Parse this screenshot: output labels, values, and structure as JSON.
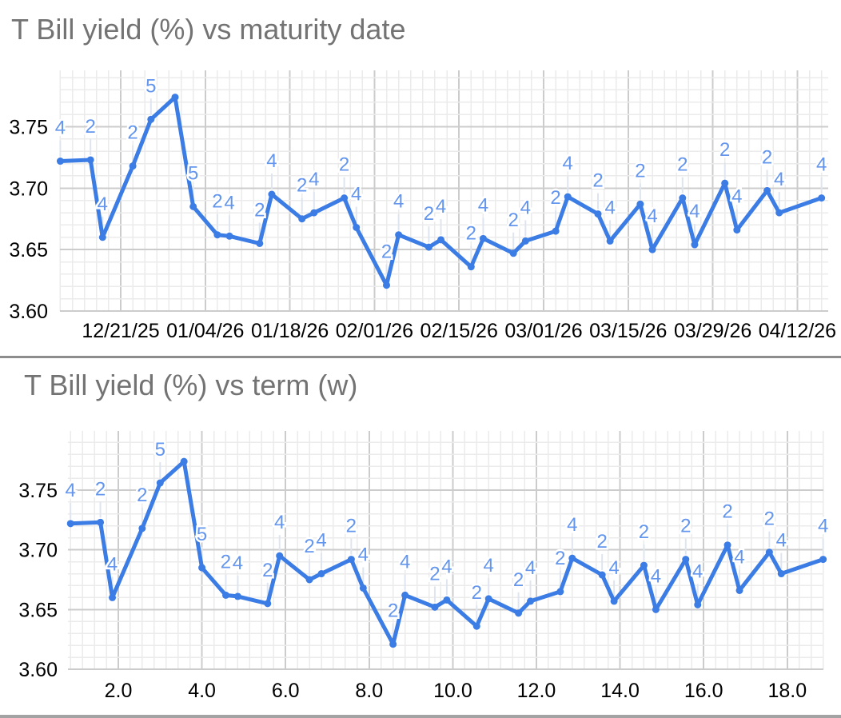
{
  "charts": [
    {
      "title": "T Bill yield (%) vs maturity date"
    },
    {
      "title": "T Bill yield (%) vs term (w)"
    }
  ],
  "colors": {
    "line": "#3c7ce5",
    "marker": "#3c7ce5",
    "point_label": "#6496ee",
    "label_leader": "#dfe5ef",
    "grid_major": "#cccccc",
    "grid_minor": "#ebebeb",
    "axis_label": "#000000",
    "title": "#737373",
    "container_border": "#8d8d8d",
    "bottom_bar": "#a3a3a3"
  },
  "chart_data": [
    {
      "type": "line",
      "title": "T Bill yield (%) vs maturity date",
      "xlabel": "maturity date",
      "ylabel": "T Bill yield (%)",
      "legend": "none",
      "grid": true,
      "ylim": [
        3.6,
        3.797
      ],
      "y_tick_values": [
        3.6,
        3.65,
        3.7,
        3.75
      ],
      "y_tick_labels": [
        "3.60",
        "3.65",
        "3.70",
        "3.75"
      ],
      "x_tick_labels": [
        "12/21/25",
        "01/04/26",
        "01/18/26",
        "02/01/26",
        "02/15/26",
        "03/01/26",
        "03/15/26",
        "03/29/26",
        "04/12/26"
      ],
      "x_weeks": [
        0.857,
        1.571,
        1.857,
        2.571,
        3.0,
        3.571,
        4.0,
        4.571,
        4.857,
        5.571,
        5.857,
        6.571,
        6.857,
        7.571,
        7.857,
        8.571,
        8.857,
        9.571,
        9.857,
        10.571,
        10.857,
        11.571,
        11.857,
        12.571,
        12.857,
        13.571,
        13.857,
        14.571,
        14.857,
        15.571,
        15.857,
        16.571,
        16.857,
        17.571,
        17.857,
        18.857
      ],
      "x_dates_est": [
        "12/11/25",
        "12/16/25",
        "12/18/25",
        "12/23/25",
        "12/26/25",
        "12/30/25",
        "01/02/26",
        "01/06/26",
        "01/08/26",
        "01/13/26",
        "01/15/26",
        "01/20/26",
        "01/22/26",
        "01/27/26",
        "01/29/26",
        "02/03/26",
        "02/05/26",
        "02/10/26",
        "02/12/26",
        "02/17/26",
        "02/19/26",
        "02/24/26",
        "02/26/26",
        "03/03/26",
        "03/05/26",
        "03/10/26",
        "03/12/26",
        "03/17/26",
        "03/19/26",
        "03/24/26",
        "03/26/26",
        "03/31/26",
        "04/02/26",
        "04/07/26",
        "04/09/26",
        "04/16/26"
      ],
      "yields": [
        3.722,
        3.723,
        3.66,
        3.718,
        3.756,
        3.774,
        3.685,
        3.662,
        3.661,
        3.655,
        3.695,
        3.675,
        3.68,
        3.692,
        3.668,
        3.621,
        3.662,
        3.652,
        3.658,
        3.636,
        3.659,
        3.647,
        3.657,
        3.665,
        3.693,
        3.679,
        3.657,
        3.687,
        3.65,
        3.692,
        3.654,
        3.704,
        3.666,
        3.698,
        3.68,
        3.692
      ],
      "point_labels": [
        "4",
        "2",
        "4",
        "2",
        "5",
        "",
        "5",
        "2",
        "4",
        "2",
        "4",
        "2",
        "4",
        "2",
        "4",
        "2",
        "4",
        "2",
        "4",
        "2",
        "4",
        "2",
        "4",
        "2",
        "4",
        "2",
        "4",
        "2",
        "4",
        "2",
        "4",
        "2",
        "4",
        "2",
        "4",
        "4"
      ]
    },
    {
      "type": "line",
      "title": "T Bill yield (%) vs term (w)",
      "xlabel": "term (w)",
      "ylabel": "T Bill yield (%)",
      "legend": "none",
      "grid": true,
      "ylim": [
        3.6,
        3.799
      ],
      "y_tick_values": [
        3.6,
        3.65,
        3.7,
        3.75
      ],
      "y_tick_labels": [
        "3.60",
        "3.65",
        "3.70",
        "3.75"
      ],
      "x_tick_values": [
        2.0,
        4.0,
        6.0,
        8.0,
        10.0,
        12.0,
        14.0,
        16.0,
        18.0
      ],
      "x_tick_labels": [
        "2.0",
        "4.0",
        "6.0",
        "8.0",
        "10.0",
        "12.0",
        "14.0",
        "16.0",
        "18.0"
      ],
      "x_weeks": [
        0.857,
        1.571,
        1.857,
        2.571,
        3.0,
        3.571,
        4.0,
        4.571,
        4.857,
        5.571,
        5.857,
        6.571,
        6.857,
        7.571,
        7.857,
        8.571,
        8.857,
        9.571,
        9.857,
        10.571,
        10.857,
        11.571,
        11.857,
        12.571,
        12.857,
        13.571,
        13.857,
        14.571,
        14.857,
        15.571,
        15.857,
        16.571,
        16.857,
        17.571,
        17.857,
        18.857
      ],
      "yields": [
        3.722,
        3.723,
        3.66,
        3.718,
        3.756,
        3.774,
        3.685,
        3.662,
        3.661,
        3.655,
        3.695,
        3.675,
        3.68,
        3.692,
        3.668,
        3.621,
        3.662,
        3.652,
        3.658,
        3.636,
        3.659,
        3.647,
        3.657,
        3.665,
        3.693,
        3.679,
        3.657,
        3.687,
        3.65,
        3.692,
        3.654,
        3.704,
        3.666,
        3.698,
        3.68,
        3.692
      ],
      "point_labels": [
        "4",
        "2",
        "4",
        "2",
        "5",
        "",
        "5",
        "2",
        "4",
        "2",
        "4",
        "2",
        "4",
        "2",
        "4",
        "2",
        "4",
        "2",
        "4",
        "2",
        "4",
        "2",
        "4",
        "2",
        "4",
        "2",
        "4",
        "2",
        "4",
        "2",
        "4",
        "2",
        "4",
        "2",
        "4",
        "4"
      ]
    }
  ]
}
